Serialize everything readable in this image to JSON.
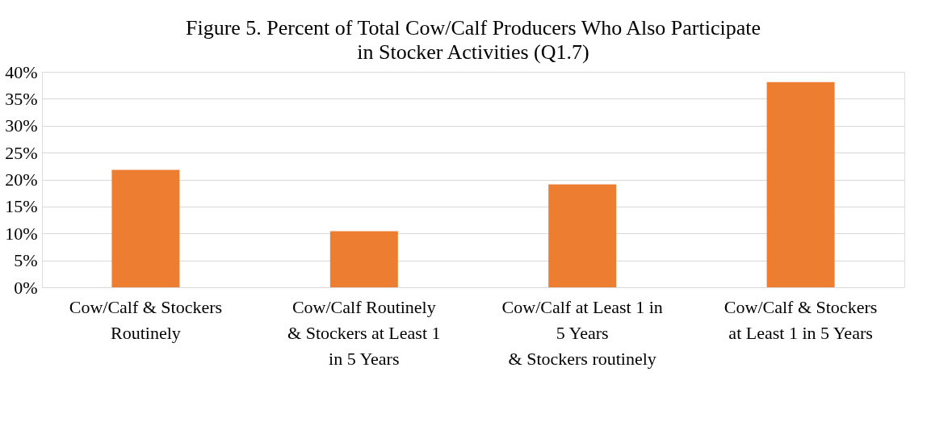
{
  "chart_data": {
    "type": "bar",
    "title": "Figure 5. Percent of Total Cow/Calf Producers Who Also Participate\nin Stocker Activities (Q1.7)",
    "categories": [
      "Cow/Calf & Stockers\nRoutinely",
      "Cow/Calf Routinely\n& Stockers at Least 1\nin 5 Years",
      "Cow/Calf at Least 1 in\n5 Years\n& Stockers routinely",
      "Cow/Calf & Stockers\nat Least 1 in 5 Years"
    ],
    "values": [
      21.8,
      10.4,
      19.1,
      38.1
    ],
    "color": "#ed7d31",
    "ylim": [
      0,
      40
    ],
    "yticks": [
      {
        "value": 0,
        "label": "0%"
      },
      {
        "value": 5,
        "label": "5%"
      },
      {
        "value": 10,
        "label": "10%"
      },
      {
        "value": 15,
        "label": "15%"
      },
      {
        "value": 20,
        "label": "20%"
      },
      {
        "value": 25,
        "label": "25%"
      },
      {
        "value": 30,
        "label": "30%"
      },
      {
        "value": 35,
        "label": "35%"
      },
      {
        "value": 40,
        "label": "40%"
      }
    ],
    "grid": "y"
  }
}
